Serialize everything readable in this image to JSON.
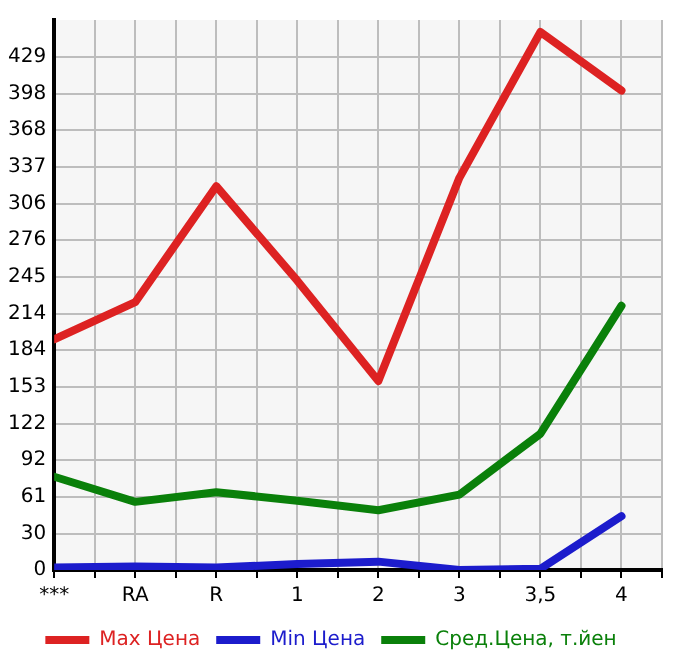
{
  "chart_data": {
    "type": "line",
    "categories": [
      "***",
      "RA",
      "R",
      "1",
      "2",
      "3",
      "3,5",
      "4"
    ],
    "series": [
      {
        "name": "Max Цена",
        "color": "#dd2222",
        "values": [
          193,
          224,
          321,
          242,
          158,
          328,
          450,
          401
        ]
      },
      {
        "name": "Min Цена",
        "color": "#1c1ccc",
        "values": [
          2,
          3,
          2,
          5,
          7,
          0,
          1,
          45
        ]
      },
      {
        "name": "Сред.Цена, т.йен",
        "color": "#0a800a",
        "values": [
          78,
          57,
          65,
          58,
          50,
          63,
          114,
          221
        ]
      }
    ],
    "ylim": [
      0,
      460
    ],
    "yticks": [
      0,
      30,
      61,
      92,
      122,
      153,
      184,
      214,
      245,
      276,
      306,
      337,
      368,
      398,
      429
    ],
    "grid": true,
    "legend": "bottom",
    "marker": "none",
    "line_style": "solid"
  }
}
